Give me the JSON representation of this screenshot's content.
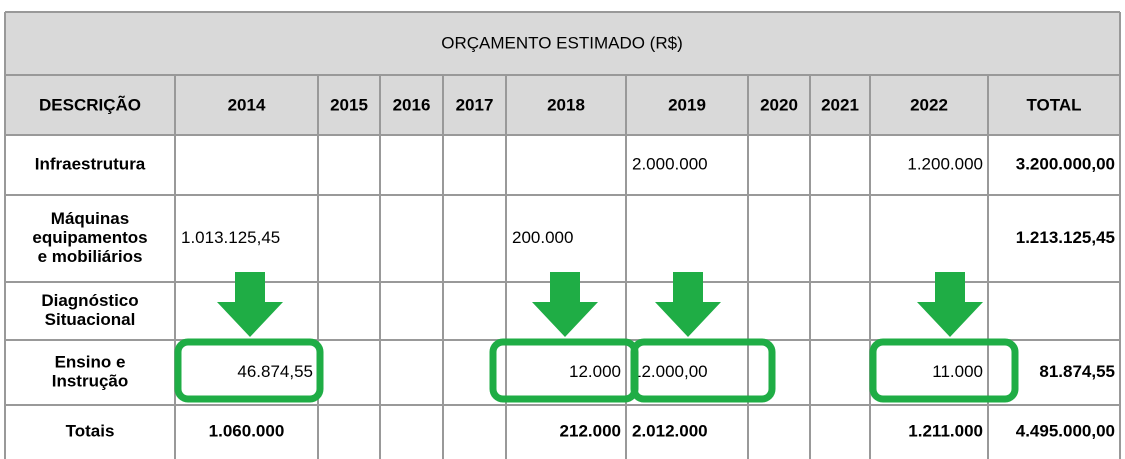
{
  "table": {
    "title": "ORÇAMENTO ESTIMADO (R$)",
    "headers": [
      "DESCRIÇÃO",
      "2014",
      "2015",
      "2016",
      "2017",
      "2018",
      "2019",
      "2020",
      "2021",
      "2022",
      "TOTAL"
    ],
    "rows": [
      {
        "label": [
          "Infraestrutura"
        ],
        "cells": [
          null,
          null,
          null,
          null,
          null,
          "2.000.000",
          null,
          null,
          "1.200.000",
          "3.200.000,00"
        ]
      },
      {
        "label": [
          "Máquinas",
          "equipamentos",
          "e mobiliários"
        ],
        "cells": [
          "1.013.125,45",
          null,
          null,
          null,
          "200.000",
          null,
          null,
          null,
          null,
          "1.213.125,45"
        ]
      },
      {
        "label": [
          "Diagnóstico",
          "Situacional"
        ],
        "cells": [
          null,
          null,
          null,
          null,
          null,
          null,
          null,
          null,
          null,
          null
        ]
      },
      {
        "label": [
          "Ensino e",
          "Instrução"
        ],
        "cells": [
          "46.874,55",
          null,
          null,
          null,
          "12.000",
          "12.000,00",
          null,
          null,
          "11.000",
          "81.874,55"
        ]
      },
      {
        "label": [
          "Totais"
        ],
        "cells": [
          "1.060.000",
          null,
          null,
          null,
          "212.000",
          "2.012.000",
          null,
          null,
          "1.211.000",
          "4.495.000,00"
        ]
      }
    ]
  }
}
